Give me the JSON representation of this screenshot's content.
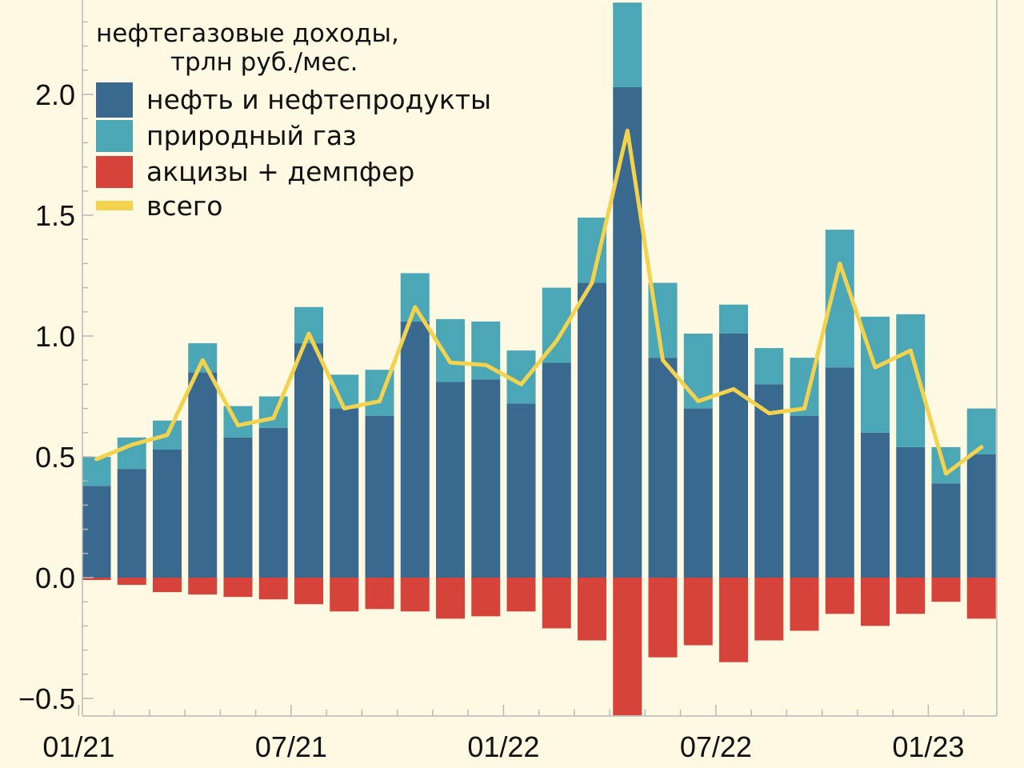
{
  "chart_data": {
    "type": "bar",
    "title": "нефтегазовые доходы,",
    "subtitle": "трлн руб./мес.",
    "xlabel": "",
    "ylabel": "",
    "ylim": [
      -0.57,
      2.38
    ],
    "yticks": [
      -0.5,
      0.0,
      0.5,
      1.0,
      1.5,
      2.0
    ],
    "ytick_labels": [
      "−0.5",
      "0.0",
      "0.5",
      "1.0",
      "1.5",
      "2.0"
    ],
    "categories": [
      "01/21",
      "02/21",
      "03/21",
      "04/21",
      "05/21",
      "06/21",
      "07/21",
      "08/21",
      "09/21",
      "10/21",
      "11/21",
      "12/21",
      "01/22",
      "02/22",
      "03/22",
      "04/22",
      "05/22",
      "06/22",
      "07/22",
      "08/22",
      "09/22",
      "10/22",
      "11/22",
      "12/22",
      "01/23",
      "02/23"
    ],
    "xtick_labels": [
      {
        "index": 0,
        "label": "01/21"
      },
      {
        "index": 6,
        "label": "07/21"
      },
      {
        "index": 12,
        "label": "01/22"
      },
      {
        "index": 18,
        "label": "07/22"
      },
      {
        "index": 24,
        "label": "01/23"
      }
    ],
    "stacked": true,
    "series": [
      {
        "name": "нефть и нефтепродукты",
        "kind": "bar",
        "color": "#3a6990",
        "values": [
          0.38,
          0.45,
          0.53,
          0.85,
          0.58,
          0.62,
          0.97,
          0.7,
          0.67,
          1.06,
          0.81,
          0.82,
          0.72,
          0.89,
          1.22,
          2.03,
          0.91,
          0.7,
          1.01,
          0.8,
          0.67,
          0.87,
          0.6,
          0.54,
          0.39,
          0.51
        ]
      },
      {
        "name": "природный газ",
        "kind": "bar",
        "color": "#4ba6b6",
        "values": [
          0.12,
          0.13,
          0.12,
          0.12,
          0.13,
          0.13,
          0.15,
          0.14,
          0.19,
          0.2,
          0.26,
          0.24,
          0.22,
          0.31,
          0.27,
          0.35,
          0.31,
          0.31,
          0.12,
          0.15,
          0.24,
          0.57,
          0.48,
          0.55,
          0.15,
          0.19
        ]
      },
      {
        "name": "акцизы + демпфер",
        "kind": "bar",
        "color": "#d6433a",
        "values": [
          -0.01,
          -0.03,
          -0.06,
          -0.07,
          -0.08,
          -0.09,
          -0.11,
          -0.14,
          -0.13,
          -0.14,
          -0.17,
          -0.16,
          -0.14,
          -0.21,
          -0.26,
          -0.57,
          -0.33,
          -0.28,
          -0.35,
          -0.26,
          -0.22,
          -0.15,
          -0.2,
          -0.15,
          -0.1,
          -0.17
        ]
      },
      {
        "name": "всего",
        "kind": "line",
        "color": "#f3d24e",
        "values": [
          0.49,
          0.55,
          0.59,
          0.9,
          0.63,
          0.66,
          1.01,
          0.7,
          0.73,
          1.12,
          0.89,
          0.88,
          0.8,
          0.98,
          1.22,
          1.85,
          0.9,
          0.73,
          0.78,
          0.68,
          0.7,
          1.3,
          0.87,
          0.94,
          0.43,
          0.54
        ]
      }
    ],
    "legend_placement": "top-left",
    "grid": false
  }
}
